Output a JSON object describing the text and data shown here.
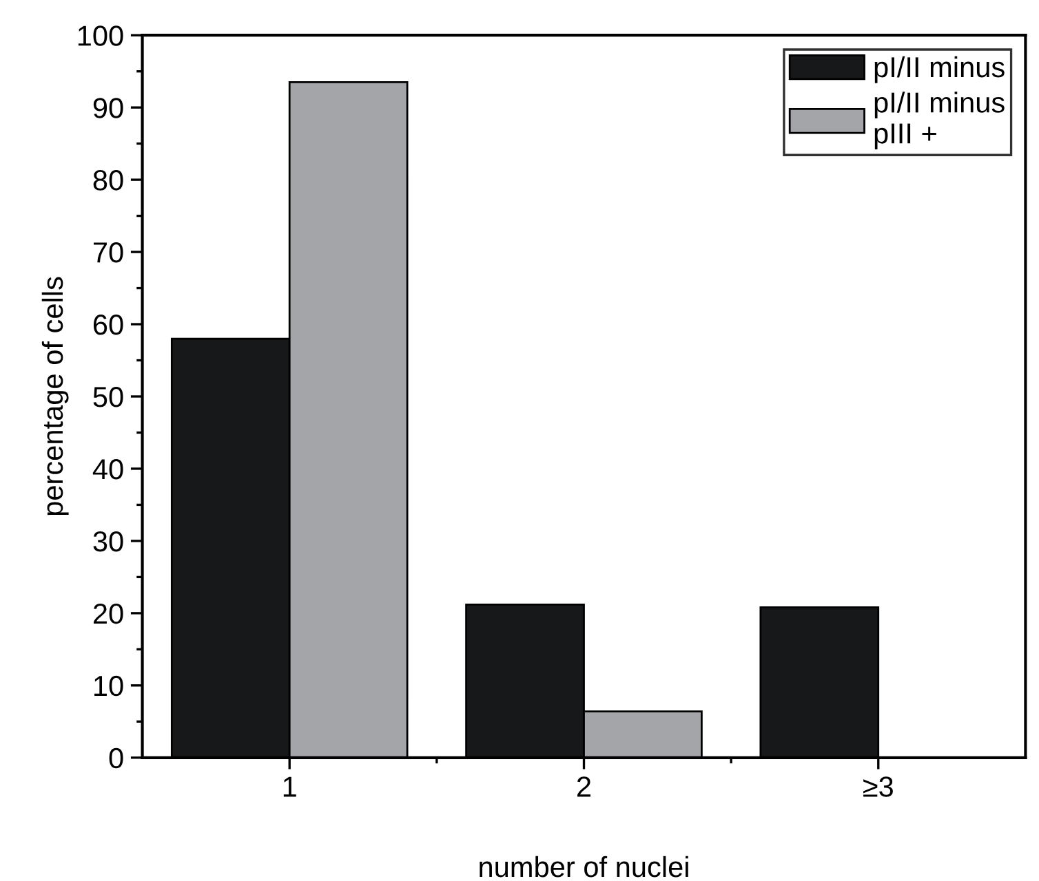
{
  "chart_data": {
    "type": "bar",
    "xlabel": "number of nuclei",
    "ylabel": "percentage of cells",
    "categories": [
      "1",
      "2",
      "≥3"
    ],
    "series": [
      {
        "name": "pI/II minus",
        "color": "#17181a",
        "values": [
          58,
          21.2,
          20.8
        ]
      },
      {
        "name": "pI/II minus\npIII +",
        "color": "#a3a5a8",
        "values": [
          93.5,
          6.4,
          null
        ]
      }
    ],
    "ylim": [
      0,
      100
    ],
    "yticks": [
      0,
      10,
      20,
      30,
      40,
      50,
      60,
      70,
      80,
      90,
      100
    ],
    "grid": false,
    "legend": "top right"
  }
}
